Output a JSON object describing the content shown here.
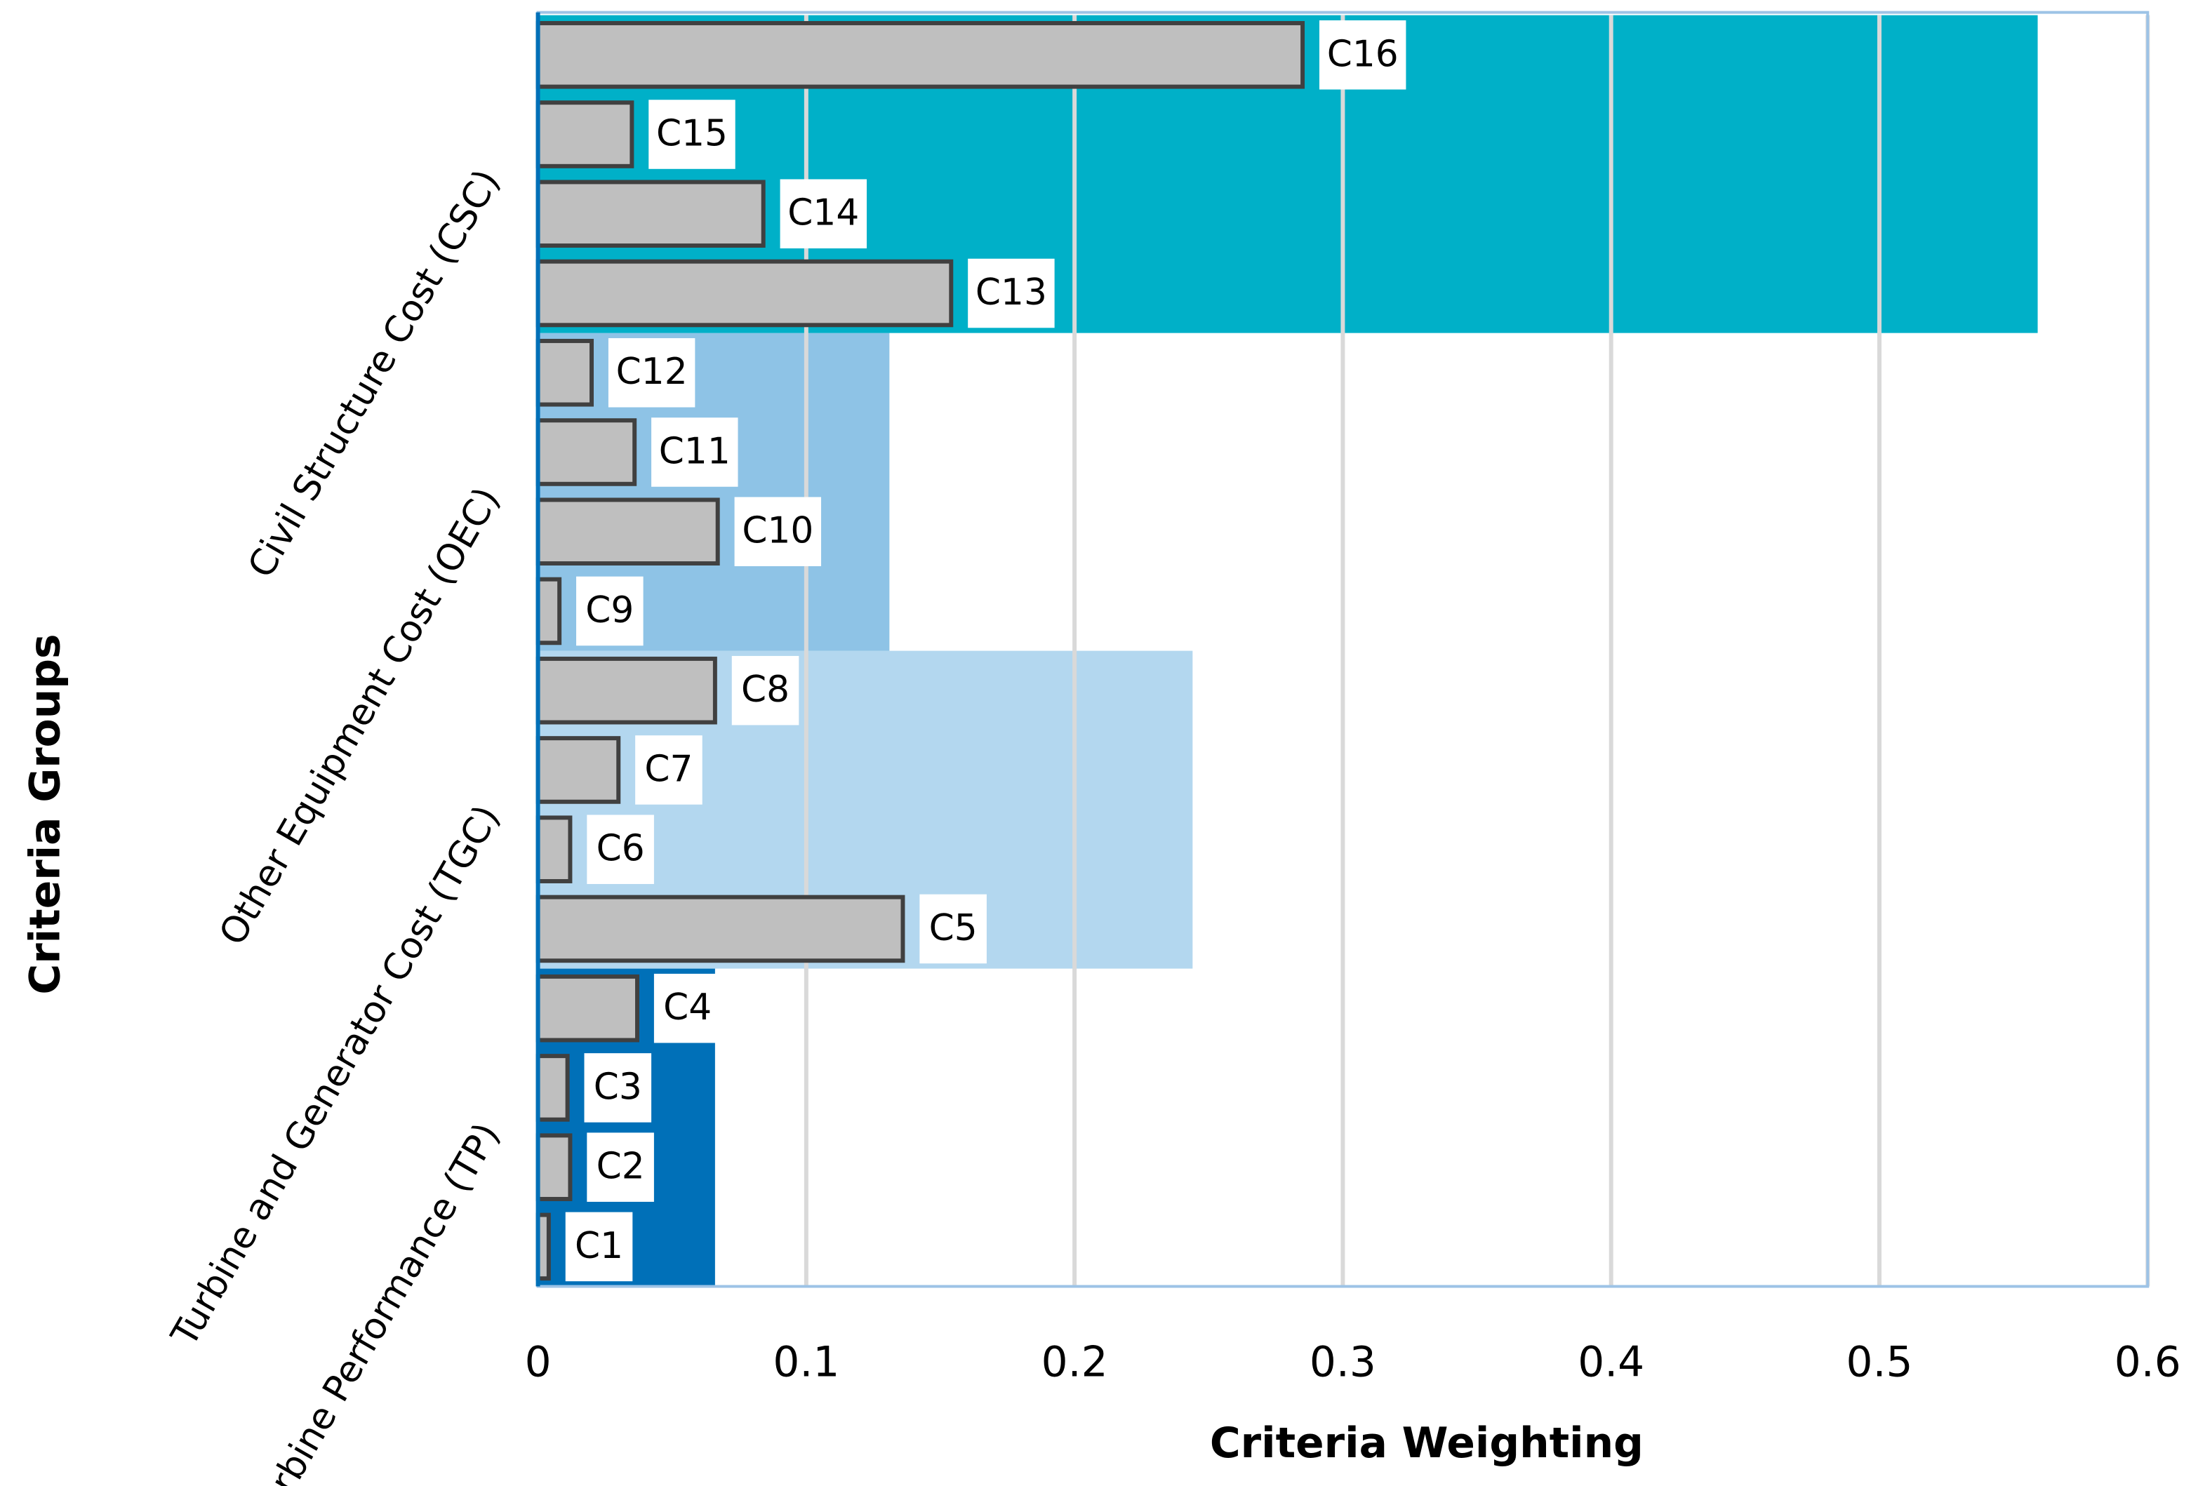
{
  "chart_data": {
    "type": "grouped-hbar",
    "x_label": "Criteria Weighting",
    "y_label": "Criteria Groups",
    "xlim": [
      0,
      0.6
    ],
    "xticks": [
      0,
      0.1,
      0.2,
      0.3,
      0.4,
      0.5,
      0.6
    ],
    "grid": true,
    "bar_color": "#bfbfbf",
    "groups": [
      {
        "name": "Turbine Performance (TP)",
        "color": "#0070b8",
        "value": 0.066,
        "categories": [
          "C1",
          "C2",
          "C3",
          "C4"
        ],
        "values": [
          0.004,
          0.012,
          0.011,
          0.037
        ]
      },
      {
        "name": "Turbine and Generator Cost (TGC)",
        "color": "#b3d7ef",
        "value": 0.244,
        "categories": [
          "C5",
          "C6",
          "C7",
          "C8"
        ],
        "values": [
          0.136,
          0.012,
          0.03,
          0.066
        ]
      },
      {
        "name": "Other Equipment Cost (OEC)",
        "color": "#8ec3e6",
        "value": 0.131,
        "categories": [
          "C9",
          "C10",
          "C11",
          "C12"
        ],
        "values": [
          0.008,
          0.067,
          0.036,
          0.02
        ]
      },
      {
        "name": "Civil Structure Cost (CSC)",
        "color": "#00b0c8",
        "value": 0.559,
        "categories": [
          "C13",
          "C14",
          "C15",
          "C16"
        ],
        "values": [
          0.154,
          0.084,
          0.035,
          0.285
        ]
      }
    ]
  }
}
